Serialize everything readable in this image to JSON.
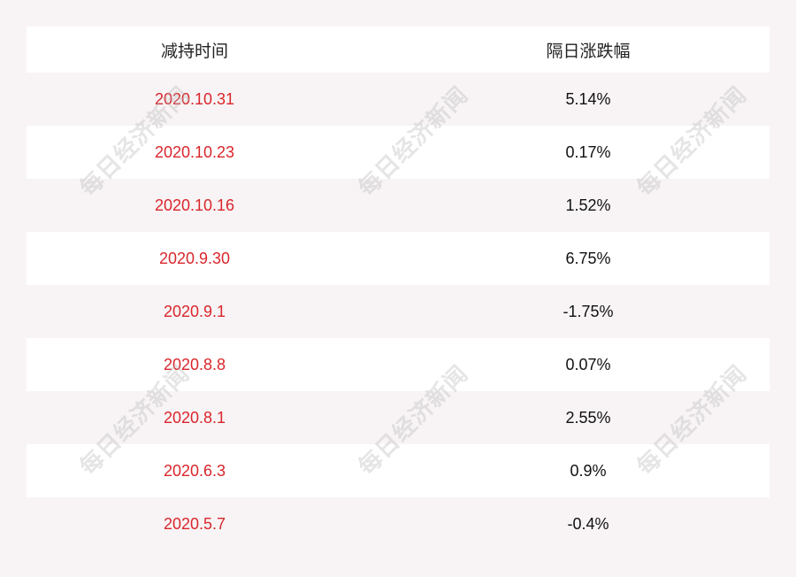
{
  "table": {
    "headers": [
      "减持时间",
      "隔日涨跌幅"
    ],
    "rows": [
      [
        "2020.10.31",
        "5.14%"
      ],
      [
        "2020.10.23",
        "0.17%"
      ],
      [
        "2020.10.16",
        "1.52%"
      ],
      [
        "2020.9.30",
        "6.75%"
      ],
      [
        "2020.9.1",
        "-1.75%"
      ],
      [
        "2020.8.8",
        "0.07%"
      ],
      [
        "2020.8.1",
        "2.55%"
      ],
      [
        "2020.6.3",
        "0.9%"
      ],
      [
        "2020.5.7",
        "-0.4%"
      ]
    ]
  },
  "watermark": "每日经济新闻",
  "colors": {
    "date": "#d9262c",
    "background": "#f8f4f5"
  }
}
